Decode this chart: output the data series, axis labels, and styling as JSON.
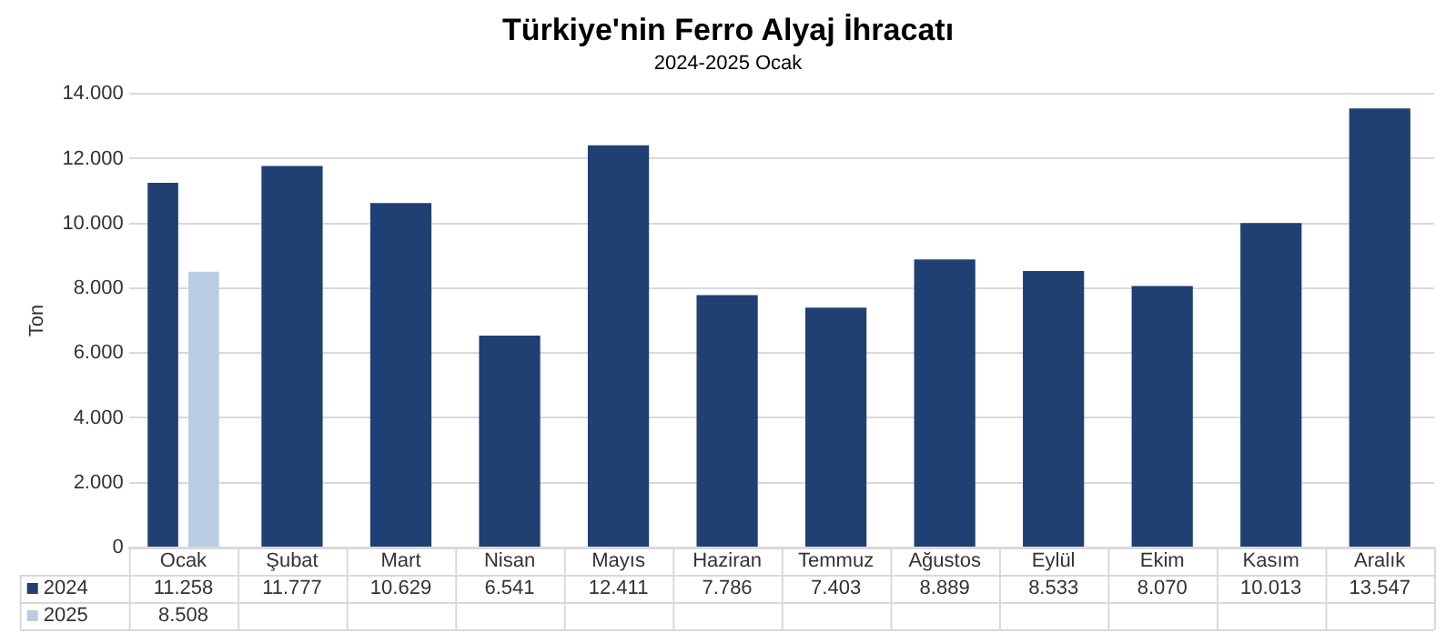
{
  "chart_data": {
    "type": "bar",
    "title": "Türkiye'nin Ferro Alyaj İhracatı",
    "subtitle": "2024-2025 Ocak",
    "ylabel": "Ton",
    "categories": [
      "Ocak",
      "Şubat",
      "Mart",
      "Nisan",
      "Mayıs",
      "Haziran",
      "Temmuz",
      "Ağustos",
      "Eylül",
      "Ekim",
      "Kasım",
      "Aralık"
    ],
    "series": [
      {
        "name": "2024",
        "color": "#203f73",
        "values": [
          11258,
          11777,
          10629,
          6541,
          12411,
          7786,
          7403,
          8889,
          8533,
          8070,
          10013,
          13547
        ],
        "value_labels": [
          "11.258",
          "11.777",
          "10.629",
          "6.541",
          "12.411",
          "7.786",
          "7.403",
          "8.889",
          "8.533",
          "8.070",
          "10.013",
          "13.547"
        ]
      },
      {
        "name": "2025",
        "color": "#b8cce4",
        "values": [
          8508,
          null,
          null,
          null,
          null,
          null,
          null,
          null,
          null,
          null,
          null,
          null
        ],
        "value_labels": [
          "8.508",
          null,
          null,
          null,
          null,
          null,
          null,
          null,
          null,
          null,
          null,
          null
        ]
      }
    ],
    "ylim": [
      0,
      14000
    ],
    "yticks": [
      0,
      {
        "value": 2000,
        "label": "2.000"
      },
      {
        "value": 4000,
        "label": "4.000"
      },
      {
        "value": 6000,
        "label": "6.000"
      },
      {
        "value": 8000,
        "label": "8.000"
      },
      {
        "value": 10000,
        "label": "10.000"
      },
      {
        "value": 12000,
        "label": "12.000"
      },
      {
        "value": 14000,
        "label": "14.000"
      }
    ],
    "grid": "y",
    "legend": "bottom left"
  }
}
